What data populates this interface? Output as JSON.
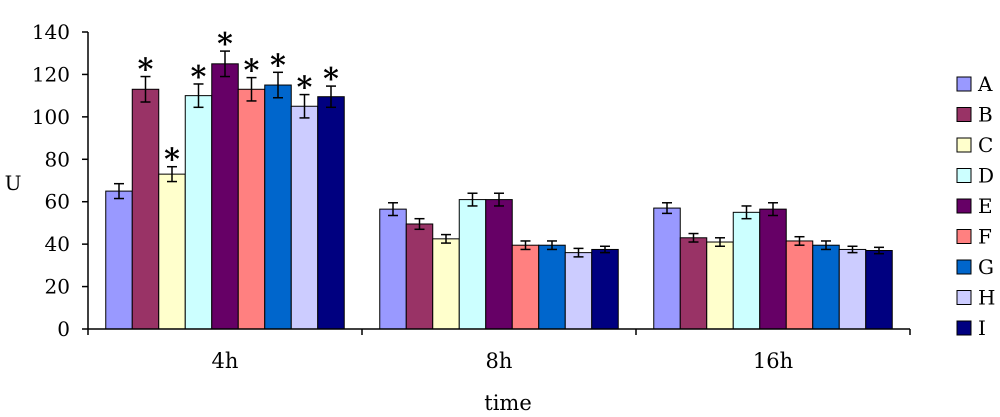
{
  "chart_data": {
    "type": "bar",
    "title": "",
    "xlabel": "time",
    "ylabel": "U",
    "ylim": [
      0,
      140
    ],
    "yticks": [
      0,
      20,
      40,
      60,
      80,
      100,
      120,
      140
    ],
    "categories": [
      "4h",
      "8h",
      "16h"
    ],
    "legend_position": "right",
    "grid": false,
    "significance_marker": "*",
    "series": [
      {
        "name": "A",
        "color": "#9999FF",
        "values": [
          65,
          56.5,
          57
        ],
        "errors": [
          3.5,
          3,
          2.5
        ],
        "significant": [
          false,
          false,
          false
        ]
      },
      {
        "name": "B",
        "color": "#993366",
        "values": [
          113,
          49.5,
          43
        ],
        "errors": [
          6,
          2.5,
          2
        ],
        "significant": [
          true,
          false,
          false
        ]
      },
      {
        "name": "C",
        "color": "#FFFFCC",
        "values": [
          73,
          42.5,
          41
        ],
        "errors": [
          3.5,
          2,
          2
        ],
        "significant": [
          true,
          false,
          false
        ]
      },
      {
        "name": "D",
        "color": "#CCFFFF",
        "values": [
          110,
          61,
          55
        ],
        "errors": [
          5.5,
          3,
          3
        ],
        "significant": [
          true,
          false,
          false
        ]
      },
      {
        "name": "E",
        "color": "#660066",
        "values": [
          125,
          61,
          56.5
        ],
        "errors": [
          6,
          3,
          3
        ],
        "significant": [
          true,
          false,
          false
        ]
      },
      {
        "name": "F",
        "color": "#FF8080",
        "values": [
          113,
          39.5,
          41.5
        ],
        "errors": [
          5.5,
          2,
          2
        ],
        "significant": [
          true,
          false,
          false
        ]
      },
      {
        "name": "G",
        "color": "#0066CC",
        "values": [
          115,
          39.5,
          39.5
        ],
        "errors": [
          6,
          2,
          2
        ],
        "significant": [
          true,
          false,
          false
        ]
      },
      {
        "name": "H",
        "color": "#CCCCFF",
        "values": [
          105,
          36,
          37.5
        ],
        "errors": [
          5.5,
          2,
          1.5
        ],
        "significant": [
          true,
          false,
          false
        ]
      },
      {
        "name": "I",
        "color": "#000080",
        "values": [
          109.5,
          37.5,
          37
        ],
        "errors": [
          5,
          1.5,
          1.5
        ],
        "significant": [
          true,
          false,
          false
        ]
      }
    ]
  }
}
